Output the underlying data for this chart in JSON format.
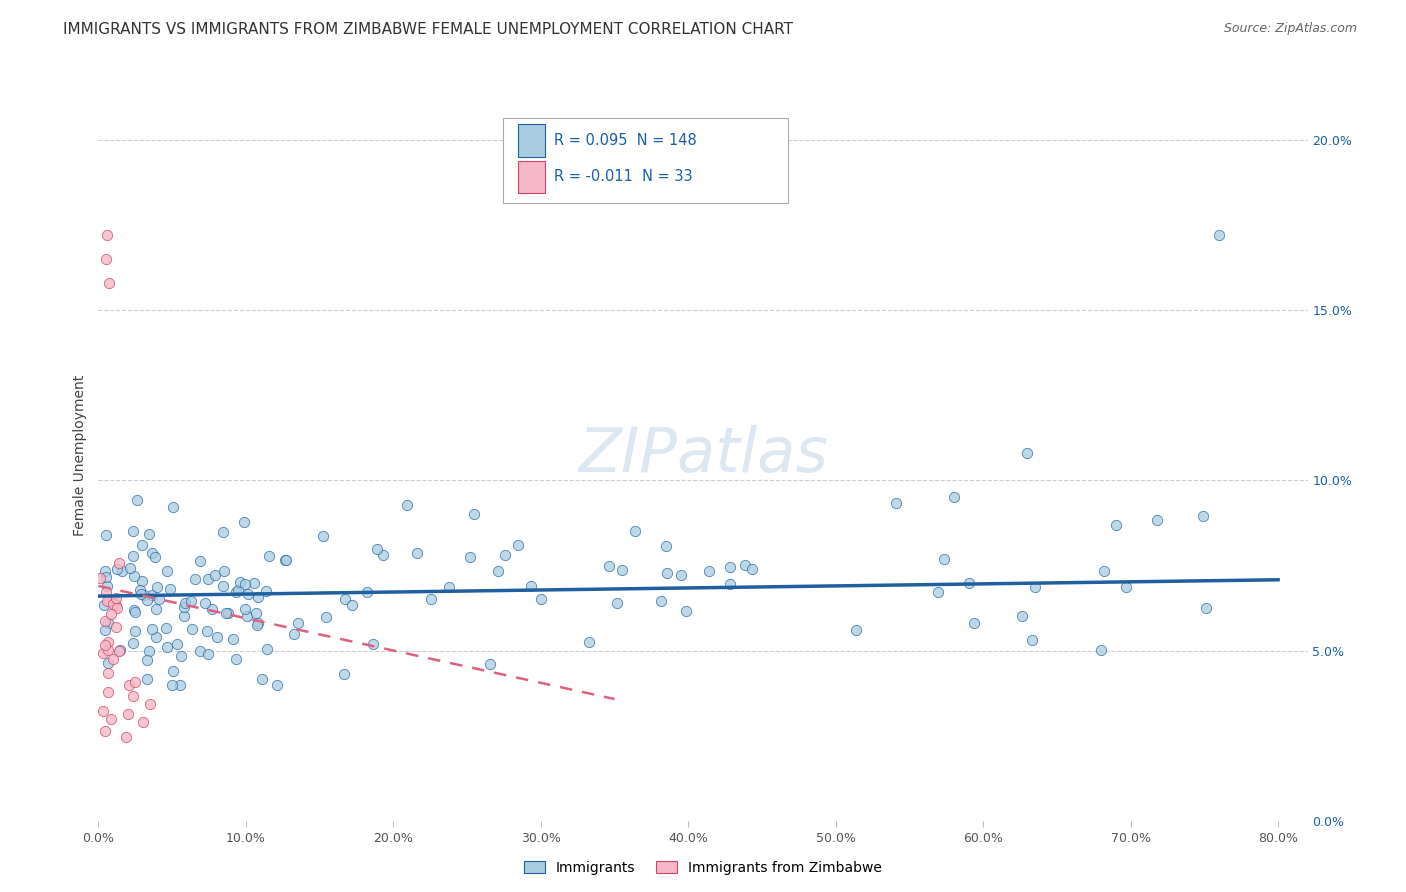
{
  "title": "IMMIGRANTS VS IMMIGRANTS FROM ZIMBABWE FEMALE UNEMPLOYMENT CORRELATION CHART",
  "source": "Source: ZipAtlas.com",
  "ylabel": "Female Unemployment",
  "background_color": "#ffffff",
  "watermark": "ZIPatlas",
  "blue_R": 0.095,
  "blue_N": 148,
  "pink_R": -0.011,
  "pink_N": 33,
  "blue_color": "#a8cce0",
  "pink_color": "#f5b8c8",
  "blue_line_color": "#2060a0",
  "pink_line_color": "#e06080",
  "xlim": [
    0.0,
    0.82
  ],
  "ylim": [
    0.0,
    0.215
  ],
  "xticks": [
    0.0,
    0.1,
    0.2,
    0.3,
    0.4,
    0.5,
    0.6,
    0.7,
    0.8
  ],
  "yticks": [
    0.0,
    0.05,
    0.1,
    0.15,
    0.2
  ],
  "xtick_labels": [
    "0.0%",
    "10.0%",
    "20.0%",
    "30.0%",
    "40.0%",
    "50.0%",
    "60.0%",
    "70.0%",
    "80.0%"
  ],
  "ytick_labels": [
    "0.0%",
    "5.0%",
    "10.0%",
    "15.0%",
    "20.0%"
  ],
  "title_fontsize": 11,
  "source_fontsize": 9,
  "axis_label_fontsize": 10,
  "tick_fontsize": 9,
  "watermark_fontsize": 45
}
